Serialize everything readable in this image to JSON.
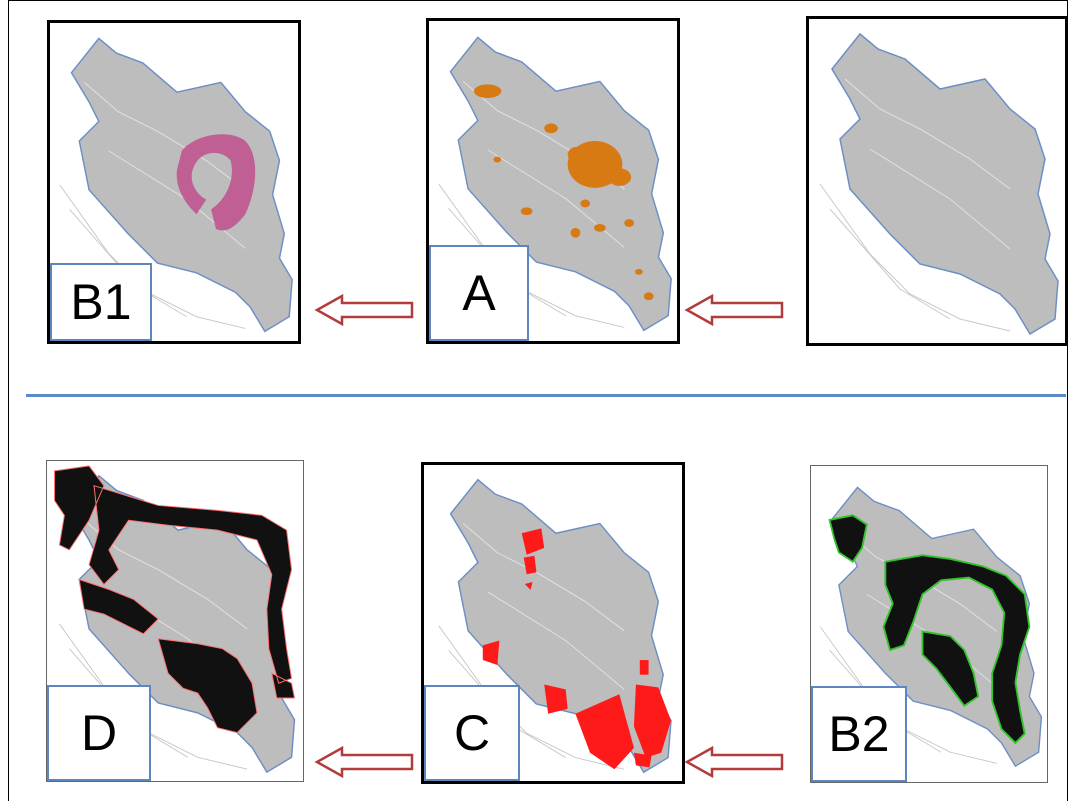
{
  "panels": {
    "top_left": {
      "label": "B1",
      "overlay": "magenta-zone"
    },
    "top_middle": {
      "label": "A",
      "overlay": "orange-patches"
    },
    "top_right": {
      "label": "",
      "overlay": "none"
    },
    "bottom_left": {
      "label": "D",
      "overlay": "black-band"
    },
    "bottom_middle": {
      "label": "C",
      "overlay": "red-polygons"
    },
    "bottom_right": {
      "label": "B2",
      "overlay": "black-green-band"
    }
  },
  "colors": {
    "map_fill": "#bdbdbd",
    "boundary": "#6d8fc6",
    "magenta": "#c0548f",
    "orange": "#d77a14",
    "red": "#ff1a1a",
    "black": "#111111",
    "green": "#31c42b",
    "arrow": "#b23b3b",
    "divider": "#5b8ac6"
  }
}
